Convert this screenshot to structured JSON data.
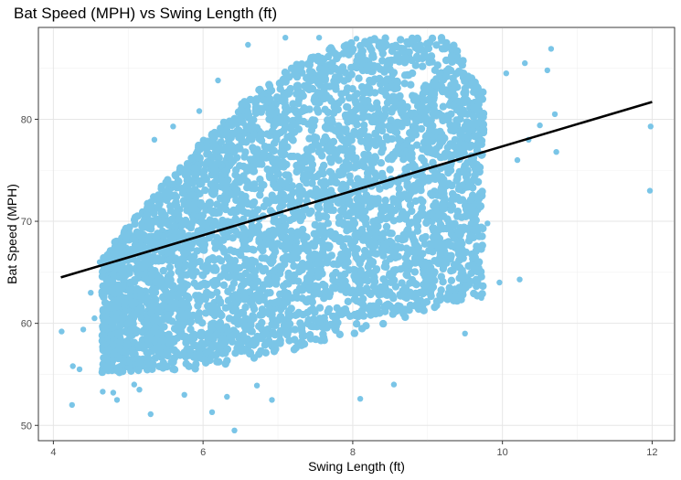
{
  "chart_data": {
    "type": "scatter",
    "title": "Bat Speed (MPH) vs Swing Length (ft)",
    "xlabel": "Swing Length (ft)",
    "ylabel": "Bat Speed (MPH)",
    "xlim": [
      3.8,
      12.3
    ],
    "ylim": [
      48.5,
      89.0
    ],
    "x_ticks": [
      4,
      6,
      8,
      10,
      12
    ],
    "y_ticks": [
      50,
      60,
      70,
      80
    ],
    "x_minor": [
      5,
      7,
      9,
      11
    ],
    "y_minor": [
      55,
      65,
      75,
      85
    ],
    "grid": true,
    "point_color": "#7AC5E7",
    "line_color": "#000000",
    "trend_line": {
      "x": [
        4.1,
        12.0
      ],
      "y": [
        64.5,
        81.7
      ]
    },
    "points": [
      [
        4.11,
        59.2
      ],
      [
        4.25,
        52.0
      ],
      [
        4.26,
        55.8
      ],
      [
        4.35,
        55.5
      ],
      [
        4.4,
        59.4
      ],
      [
        4.5,
        63.0
      ],
      [
        4.55,
        60.5
      ],
      [
        4.62,
        66.0
      ],
      [
        4.66,
        53.3
      ],
      [
        4.8,
        53.2
      ],
      [
        4.85,
        52.5
      ],
      [
        4.9,
        68.1
      ],
      [
        5.08,
        54.0
      ],
      [
        5.15,
        53.5
      ],
      [
        5.3,
        51.1
      ],
      [
        5.35,
        78.0
      ],
      [
        5.6,
        79.3
      ],
      [
        5.75,
        53.0
      ],
      [
        5.95,
        80.8
      ],
      [
        6.12,
        51.3
      ],
      [
        6.2,
        83.8
      ],
      [
        6.32,
        52.8
      ],
      [
        6.42,
        49.5
      ],
      [
        6.6,
        87.3
      ],
      [
        6.72,
        53.9
      ],
      [
        6.92,
        52.5
      ],
      [
        7.1,
        88.0
      ],
      [
        7.55,
        88.0
      ],
      [
        8.05,
        87.9
      ],
      [
        8.1,
        52.6
      ],
      [
        8.55,
        54.0
      ],
      [
        9.2,
        87.8
      ],
      [
        9.5,
        59.0
      ],
      [
        9.55,
        84.2
      ],
      [
        9.72,
        62.5
      ],
      [
        9.8,
        69.8
      ],
      [
        9.96,
        64.0
      ],
      [
        10.05,
        84.5
      ],
      [
        10.2,
        76.0
      ],
      [
        10.23,
        64.3
      ],
      [
        10.3,
        85.5
      ],
      [
        10.35,
        78.0
      ],
      [
        10.5,
        79.4
      ],
      [
        10.6,
        84.8
      ],
      [
        10.65,
        86.9
      ],
      [
        10.7,
        80.5
      ],
      [
        10.72,
        76.8
      ],
      [
        11.98,
        79.3
      ],
      [
        11.97,
        73.0
      ]
    ]
  }
}
